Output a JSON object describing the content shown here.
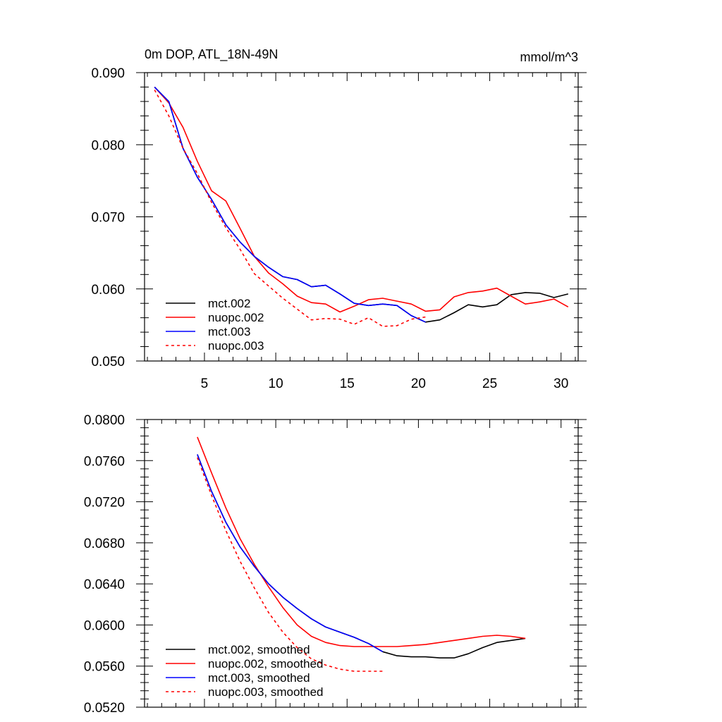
{
  "chart_data": [
    {
      "type": "line",
      "title_left": "0m DOP, ATL_18N-49N",
      "title_right": "mmol/m^3",
      "xlim": [
        0.8,
        31.2
      ],
      "ylim": [
        0.05,
        0.09
      ],
      "xticks": [
        5,
        10,
        15,
        20,
        25,
        30
      ],
      "xtick_labels": [
        "5",
        "10",
        "15",
        "20",
        "25",
        "30"
      ],
      "yticks": [
        0.05,
        0.06,
        0.07,
        0.08,
        0.09
      ],
      "ytick_labels": [
        "0.050",
        "0.060",
        "0.070",
        "0.080",
        "0.090"
      ],
      "legend_position": "bottom-left",
      "series": [
        {
          "name": "mct.002",
          "color": "#000000",
          "dash": "solid",
          "x": [
            1.5,
            2.5,
            3.5,
            4.5,
            5.5,
            6.5,
            7.5,
            8.5,
            9.5,
            10.5,
            11.5,
            12.5,
            13.5,
            14.5,
            15.5,
            16.5,
            17.5,
            18.5,
            19.5,
            20.5,
            21.5,
            22.5,
            23.5,
            24.5,
            25.5,
            26.5,
            27.5,
            28.5,
            29.5,
            30.5
          ],
          "values": [
            0.088,
            0.086,
            0.0795,
            0.0755,
            0.0724,
            0.0689,
            0.0665,
            0.0645,
            0.063,
            0.0617,
            0.0613,
            0.0603,
            0.0605,
            0.0593,
            0.058,
            0.0577,
            0.0579,
            0.0577,
            0.0563,
            0.0554,
            0.0557,
            0.0567,
            0.0578,
            0.0575,
            0.0578,
            0.0592,
            0.0595,
            0.0594,
            0.0588,
            0.0593
          ]
        },
        {
          "name": "nuopc.002",
          "color": "#ff0000",
          "dash": "solid",
          "x": [
            1.5,
            2.5,
            3.5,
            4.5,
            5.5,
            6.5,
            7.5,
            8.5,
            9.5,
            10.5,
            11.5,
            12.5,
            13.5,
            14.5,
            15.5,
            16.5,
            17.5,
            18.5,
            19.5,
            20.5,
            21.5,
            22.5,
            23.5,
            24.5,
            25.5,
            26.5,
            27.5,
            28.5,
            29.5,
            30.5
          ],
          "values": [
            0.088,
            0.0858,
            0.0824,
            0.0777,
            0.0736,
            0.0722,
            0.0684,
            0.0645,
            0.0622,
            0.0607,
            0.059,
            0.0581,
            0.0579,
            0.0568,
            0.0576,
            0.0585,
            0.0587,
            0.0583,
            0.0579,
            0.0569,
            0.0571,
            0.0589,
            0.0595,
            0.0597,
            0.0601,
            0.059,
            0.0579,
            0.0582,
            0.0586,
            0.0575
          ]
        },
        {
          "name": "mct.003",
          "color": "#0000ff",
          "dash": "solid",
          "x": [
            1.5,
            2.5,
            3.5,
            4.5,
            5.5,
            6.5,
            7.5,
            8.5,
            9.5,
            10.5,
            11.5,
            12.5,
            13.5,
            14.5,
            15.5,
            16.5,
            17.5,
            18.5,
            19.5,
            20.5
          ],
          "values": [
            0.088,
            0.086,
            0.0795,
            0.0755,
            0.0724,
            0.0689,
            0.0665,
            0.0645,
            0.063,
            0.0617,
            0.0613,
            0.0603,
            0.0605,
            0.0593,
            0.058,
            0.0577,
            0.0579,
            0.0577,
            0.0563,
            0.0554
          ]
        },
        {
          "name": "nuopc.003",
          "color": "#ff0000",
          "dash": "dashed",
          "x": [
            1.5,
            2.5,
            3.5,
            4.5,
            5.5,
            6.5,
            7.5,
            8.5,
            9.5,
            10.5,
            11.5,
            12.5,
            13.5,
            14.5,
            15.5,
            16.5,
            17.5,
            18.5,
            19.5,
            20.5
          ],
          "values": [
            0.0876,
            0.084,
            0.0795,
            0.076,
            0.072,
            0.0685,
            0.0655,
            0.0621,
            0.0604,
            0.0587,
            0.0572,
            0.0557,
            0.0559,
            0.0558,
            0.0551,
            0.056,
            0.0548,
            0.0549,
            0.0558,
            0.0561
          ]
        }
      ]
    },
    {
      "type": "line",
      "xlim": [
        0.8,
        31.2
      ],
      "ylim": [
        0.052,
        0.08
      ],
      "xticks": [
        5,
        10,
        15,
        20,
        25,
        30
      ],
      "xtick_labels": [],
      "yticks": [
        0.052,
        0.056,
        0.06,
        0.064,
        0.068,
        0.072,
        0.076,
        0.08
      ],
      "ytick_labels": [
        "0.0520",
        "0.0560",
        "0.0600",
        "0.0640",
        "0.0680",
        "0.0720",
        "0.0760",
        "0.0800"
      ],
      "legend_position": "bottom-left",
      "series": [
        {
          "name": "mct.002, smoothed",
          "color": "#000000",
          "dash": "solid",
          "x": [
            4.5,
            5.5,
            6.5,
            7.5,
            8.5,
            9.5,
            10.5,
            11.5,
            12.5,
            13.5,
            14.5,
            15.5,
            16.5,
            17.5,
            18.5,
            19.5,
            20.5,
            21.5,
            22.5,
            23.5,
            24.5,
            25.5,
            26.5,
            27.5
          ],
          "values": [
            0.0766,
            0.073,
            0.07,
            0.0676,
            0.0657,
            0.064,
            0.0627,
            0.0616,
            0.0606,
            0.0598,
            0.0593,
            0.0588,
            0.0582,
            0.0574,
            0.057,
            0.0569,
            0.0569,
            0.0568,
            0.0568,
            0.0572,
            0.0578,
            0.0583,
            0.0585,
            0.0587
          ]
        },
        {
          "name": "nuopc.002, smoothed",
          "color": "#ff0000",
          "dash": "solid",
          "x": [
            4.5,
            5.5,
            6.5,
            7.5,
            8.5,
            9.5,
            10.5,
            11.5,
            12.5,
            13.5,
            14.5,
            15.5,
            16.5,
            17.5,
            18.5,
            19.5,
            20.5,
            21.5,
            22.5,
            23.5,
            24.5,
            25.5,
            26.5,
            27.5
          ],
          "values": [
            0.0783,
            0.0748,
            0.0714,
            0.0684,
            0.0659,
            0.0637,
            0.0617,
            0.06,
            0.0589,
            0.0583,
            0.058,
            0.0579,
            0.0579,
            0.0579,
            0.0579,
            0.058,
            0.0581,
            0.0583,
            0.0585,
            0.0587,
            0.0589,
            0.059,
            0.0589,
            0.0587
          ]
        },
        {
          "name": "mct.003, smoothed",
          "color": "#0000ff",
          "dash": "solid",
          "x": [
            4.5,
            5.5,
            6.5,
            7.5,
            8.5,
            9.5,
            10.5,
            11.5,
            12.5,
            13.5,
            14.5,
            15.5,
            16.5,
            17.5
          ],
          "values": [
            0.0766,
            0.073,
            0.07,
            0.0676,
            0.0657,
            0.064,
            0.0627,
            0.0616,
            0.0606,
            0.0598,
            0.0593,
            0.0588,
            0.0582,
            0.0574
          ]
        },
        {
          "name": "nuopc.003, smoothed",
          "color": "#ff0000",
          "dash": "dashed",
          "x": [
            4.5,
            5.5,
            6.5,
            7.5,
            8.5,
            9.5,
            10.5,
            11.5,
            12.5,
            13.5,
            14.5,
            15.5,
            16.5,
            17.5
          ],
          "values": [
            0.0763,
            0.0726,
            0.0692,
            0.0662,
            0.0636,
            0.0612,
            0.0593,
            0.0578,
            0.0567,
            0.0561,
            0.0557,
            0.0555,
            0.0555,
            0.0555
          ]
        }
      ]
    }
  ]
}
